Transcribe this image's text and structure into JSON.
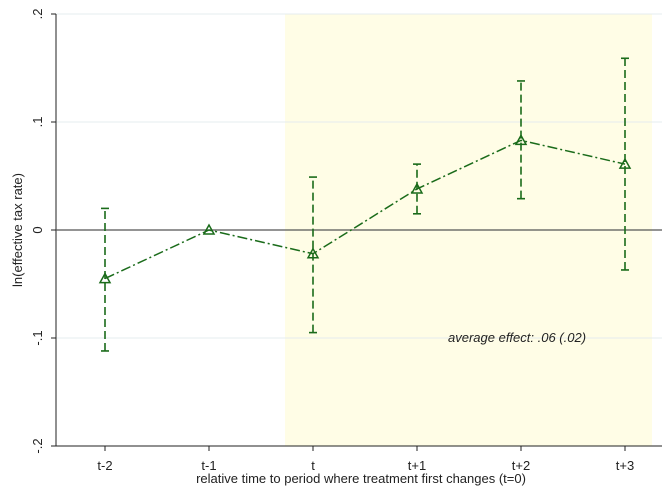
{
  "chart_data": {
    "type": "line",
    "title": "",
    "xlabel": "relative time to period where treatment first changes (t=0)",
    "ylabel": "ln(effective tax rate)",
    "categories": [
      "t-2",
      "t-1",
      "t",
      "t+1",
      "t+2",
      "t+3"
    ],
    "ylim": [
      -0.2,
      0.2
    ],
    "yticks": [
      -0.2,
      -0.1,
      0,
      0.1,
      0.2
    ],
    "ytick_labels": [
      "-.2",
      "-.1",
      "0",
      ".1",
      ".2"
    ],
    "grid": true,
    "reference_line_y": 0,
    "shaded_region": {
      "from_category": "t",
      "to_category": "t+3",
      "color": "#fffde6"
    },
    "series": [
      {
        "values": [
          -0.045,
          0.0,
          -0.022,
          0.038,
          0.083,
          0.061
        ],
        "ci_lower": [
          -0.112,
          0.0,
          -0.095,
          0.015,
          0.029,
          -0.037
        ],
        "ci_upper": [
          0.02,
          0.0,
          0.049,
          0.061,
          0.138,
          0.159
        ],
        "marker": "hollow-triangle",
        "line_style": "dash-dot",
        "color": "#1a6b1a"
      }
    ],
    "annotation": "average effect: .06 (.02)"
  }
}
